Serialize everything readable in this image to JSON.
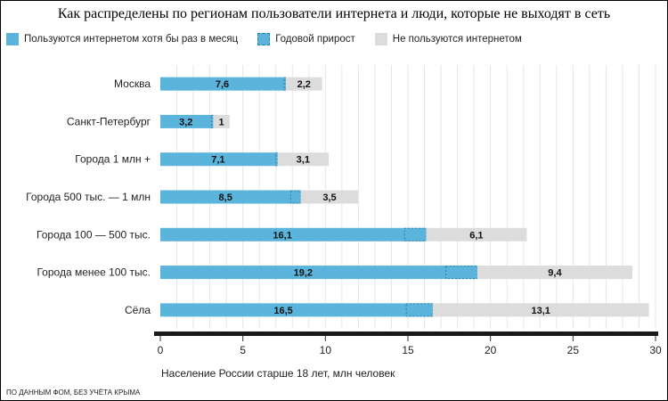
{
  "title": "Как распределены по регионам пользователи интернета и люди, которые не выходят в сеть",
  "footnote": "ПО ДАННЫМ ФОМ, БЕЗ УЧЁТА КРЫМА",
  "colors": {
    "users": "#5ab4db",
    "growth_border": "#2a7fa8",
    "nonusers": "#dcdcdc",
    "axis": "#1a1a1a",
    "grid": "#e6e6e6"
  },
  "chart_data": {
    "type": "bar",
    "orientation": "horizontal",
    "stacked": true,
    "categories": [
      "Москва",
      "Санкт-Петербург",
      "Города 1 млн +",
      "Города 500 тыс. — 1 млн",
      "Города 100 — 500 тыс.",
      "Города менее 100 тыс.",
      "Сёла"
    ],
    "series": [
      {
        "name": "Пользуются интернетом хотя бы раз в месяц",
        "values": [
          7.6,
          3.2,
          7.1,
          8.5,
          16.1,
          19.2,
          16.5
        ],
        "labels": [
          "7,6",
          "3,2",
          "7,1",
          "8,5",
          "16,1",
          "19,2",
          "16,5"
        ]
      },
      {
        "name": "Годовой прирост",
        "values": [
          0.1,
          0.1,
          0.1,
          0.6,
          1.3,
          1.9,
          1.6
        ]
      },
      {
        "name": "Не пользуются интернетом",
        "values": [
          2.2,
          1,
          3.1,
          3.5,
          6.1,
          9.4,
          13.1
        ],
        "labels": [
          "2,2",
          "1",
          "3,1",
          "3,5",
          "6,1",
          "9,4",
          "13,1"
        ]
      }
    ],
    "xlabel": "Население России старше 18 лет, млн человек",
    "xlim": [
      0,
      30
    ],
    "xticks": [
      "0",
      "5",
      "10",
      "15",
      "20",
      "25",
      "30"
    ],
    "grid": true,
    "legend": "top-left"
  }
}
